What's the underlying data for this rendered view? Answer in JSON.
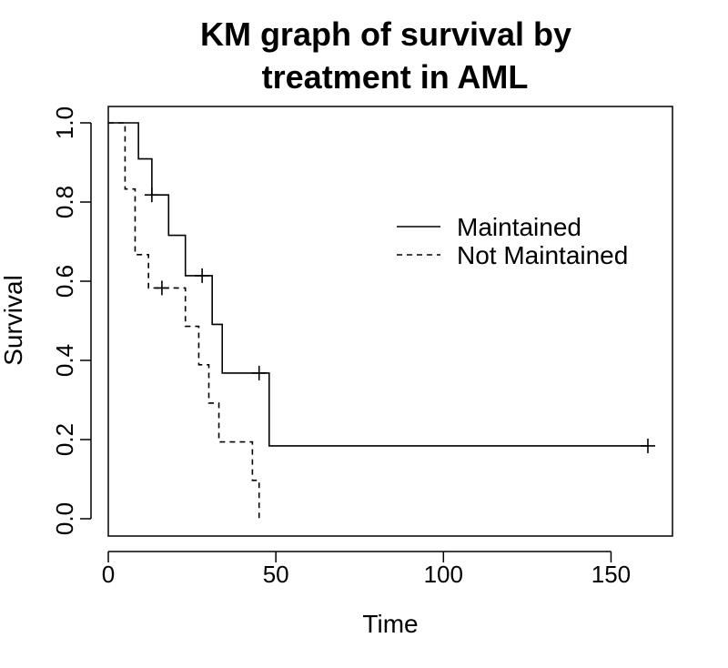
{
  "chart_data": {
    "type": "line",
    "subtype": "kaplan-meier step",
    "title_lines": [
      "KM graph of survival by",
      "treatment in AML"
    ],
    "xlabel": "Time",
    "ylabel": "Survival",
    "xlim": [
      0,
      161
    ],
    "ylim": [
      0,
      1
    ],
    "x_ticks": [
      0,
      50,
      100,
      150
    ],
    "y_ticks": [
      0.0,
      0.2,
      0.4,
      0.6,
      0.8,
      1.0
    ],
    "y_tick_labels": [
      "0.0",
      "0.2",
      "0.4",
      "0.6",
      "0.8",
      "1.0"
    ],
    "grid": false,
    "legend_position": "top-right",
    "series": [
      {
        "name": "Maintained",
        "line_style": "solid",
        "x": [
          0,
          9,
          13,
          18,
          23,
          31,
          34,
          48,
          161
        ],
        "y": [
          1.0,
          0.909,
          0.818,
          0.716,
          0.614,
          0.491,
          0.368,
          0.184,
          0.184
        ],
        "censored": [
          {
            "x": 13,
            "y": 0.818
          },
          {
            "x": 28,
            "y": 0.614
          },
          {
            "x": 45,
            "y": 0.368
          },
          {
            "x": 161,
            "y": 0.184
          }
        ]
      },
      {
        "name": "Not Maintained",
        "line_style": "dashed",
        "x": [
          0,
          5,
          8,
          12,
          23,
          27,
          30,
          33,
          43,
          45
        ],
        "y": [
          1.0,
          0.833,
          0.667,
          0.583,
          0.486,
          0.389,
          0.292,
          0.194,
          0.097,
          0.0
        ],
        "censored": [
          {
            "x": 16,
            "y": 0.583
          }
        ]
      }
    ]
  }
}
